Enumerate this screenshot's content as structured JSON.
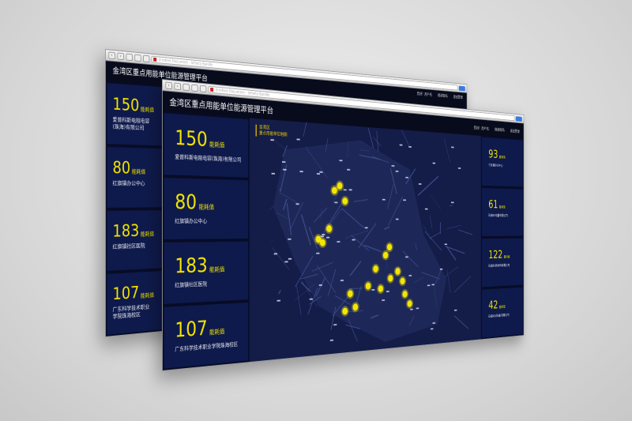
{
  "browser": {
    "tab_title": "Untitled Document - Infinity Bundle",
    "go_label": "Go"
  },
  "app": {
    "title": "金湾区重点用能单位能源管理平台",
    "greeting": "您好！用户名",
    "change_password": "修改密码",
    "logout": "退出登录"
  },
  "map": {
    "legend_line1": "金湾区",
    "legend_line2": "重点用能单位地图"
  },
  "unit_label": "能耗值",
  "left_cards": [
    {
      "value": "150",
      "name": "爱普科斯电阻电容(珠海)有限公司"
    },
    {
      "value": "80",
      "name": "红旗镇办公中心"
    },
    {
      "value": "183",
      "name": "红旗镇社区医院"
    },
    {
      "value": "107",
      "name": "广东科学技术职业学院珠海校区"
    }
  ],
  "right_cards": [
    {
      "value": "93",
      "name": "三灶镇办公中心"
    },
    {
      "value": "61",
      "name": "珠海XX电器有限公司"
    },
    {
      "value": "122",
      "name": "珠海XX新材料有限公司"
    },
    {
      "value": "42",
      "name": "珠海XX(珠海)有限公司"
    }
  ],
  "colors": {
    "accent": "#f3e400",
    "panel": "#0e1a4c",
    "header": "#070b1c"
  }
}
